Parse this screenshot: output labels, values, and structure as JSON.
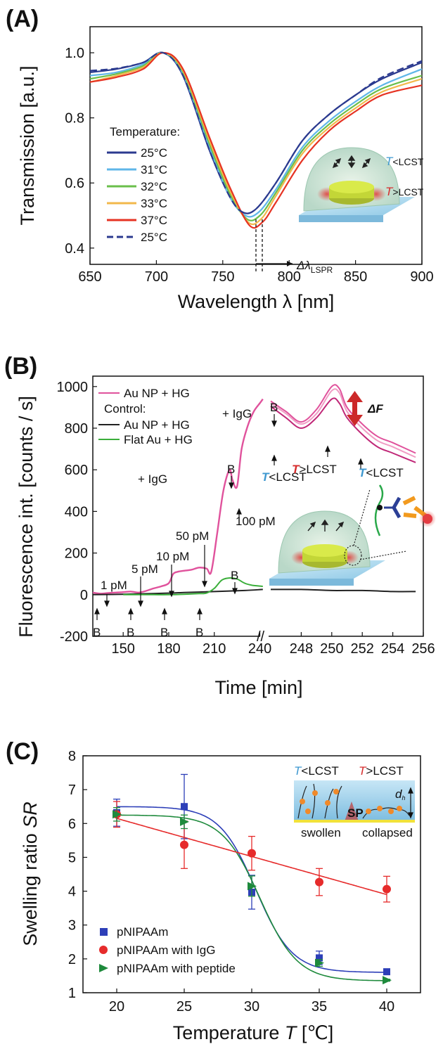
{
  "chart_data": [
    {
      "panel": "(A)",
      "type": "line",
      "xlabel": "Wavelength λ [nm]",
      "ylabel": "Transmission [a.u.]",
      "xlim": [
        650,
        900
      ],
      "ylim": [
        0.35,
        1.08
      ],
      "xticks": [
        650,
        700,
        750,
        800,
        850,
        900
      ],
      "yticks": [
        "0.4",
        "0.6",
        "0.8",
        "1.0"
      ],
      "legend_title": "Temperature:",
      "legend_position": "bottom-left",
      "series": [
        {
          "name": "25°C",
          "color": "#2b3a8f",
          "dash": false,
          "x": [
            650,
            670,
            690,
            705,
            720,
            740,
            755,
            765,
            775,
            790,
            810,
            830,
            850,
            870,
            900
          ],
          "y": [
            0.94,
            0.95,
            0.97,
            1.0,
            0.93,
            0.7,
            0.56,
            0.51,
            0.52,
            0.6,
            0.73,
            0.81,
            0.87,
            0.92,
            0.97
          ]
        },
        {
          "name": "31°C",
          "color": "#5fb6e8",
          "dash": false,
          "x": [
            650,
            670,
            690,
            705,
            720,
            740,
            755,
            767,
            777,
            790,
            810,
            830,
            850,
            870,
            900
          ],
          "y": [
            0.93,
            0.94,
            0.965,
            1.0,
            0.935,
            0.71,
            0.56,
            0.5,
            0.51,
            0.58,
            0.71,
            0.79,
            0.85,
            0.9,
            0.95
          ]
        },
        {
          "name": "32°C",
          "color": "#6abf4b",
          "dash": false,
          "x": [
            650,
            670,
            690,
            705,
            720,
            740,
            755,
            768,
            778,
            790,
            810,
            830,
            850,
            870,
            900
          ],
          "y": [
            0.92,
            0.935,
            0.96,
            1.0,
            0.94,
            0.72,
            0.57,
            0.49,
            0.5,
            0.57,
            0.7,
            0.78,
            0.84,
            0.89,
            0.93
          ]
        },
        {
          "name": "33°C",
          "color": "#f2b84b",
          "dash": false,
          "x": [
            650,
            670,
            690,
            705,
            720,
            740,
            755,
            769,
            779,
            790,
            810,
            830,
            850,
            870,
            900
          ],
          "y": [
            0.91,
            0.93,
            0.955,
            1.0,
            0.945,
            0.73,
            0.58,
            0.48,
            0.49,
            0.56,
            0.69,
            0.77,
            0.83,
            0.88,
            0.92
          ]
        },
        {
          "name": "37°C",
          "color": "#e63323",
          "dash": false,
          "x": [
            650,
            670,
            690,
            705,
            720,
            740,
            755,
            770,
            780,
            790,
            810,
            830,
            850,
            870,
            900
          ],
          "y": [
            0.91,
            0.925,
            0.95,
            1.0,
            0.95,
            0.74,
            0.59,
            0.47,
            0.48,
            0.54,
            0.67,
            0.76,
            0.82,
            0.87,
            0.9
          ]
        },
        {
          "name": "25°C",
          "color": "#2b3a8f",
          "dash": true,
          "x": [
            650,
            670,
            690,
            705,
            720,
            740,
            755,
            765,
            775,
            790,
            810,
            830,
            850,
            870,
            900
          ],
          "y": [
            0.945,
            0.952,
            0.97,
            1.0,
            0.93,
            0.7,
            0.56,
            0.51,
            0.52,
            0.6,
            0.73,
            0.81,
            0.87,
            0.925,
            0.975
          ]
        }
      ],
      "annotations": [
        "Δλ",
        "LSPR",
        "T",
        "<LCST",
        "T",
        ">LCST"
      ]
    },
    {
      "panel": "(B)",
      "type": "line",
      "xlabel": "Time [min]",
      "ylabel": "Fluorescence int. [counts / s]",
      "ylim": [
        -200,
        1050
      ],
      "yticks": [
        -200,
        0,
        200,
        400,
        600,
        800,
        1000
      ],
      "xticks_left": [
        150,
        180,
        210,
        240
      ],
      "xticks_right": [
        248,
        250,
        252,
        254,
        256
      ],
      "xlim_left": [
        130,
        243
      ],
      "xlim_right": [
        246,
        256
      ],
      "axis_break": "//",
      "legend_position": "top-left",
      "legend": {
        "s1": "Au NP + HG",
        "control": "Control:",
        "s2": "Au NP + HG",
        "s3": "Flat Au + HG"
      },
      "series": [
        {
          "name": "Au NP + HG",
          "color": "#e0529c",
          "x": [
            130,
            135,
            140,
            145,
            150,
            155,
            160,
            165,
            170,
            175,
            180,
            183,
            186,
            190,
            195,
            200,
            205,
            208,
            212,
            216,
            220,
            222,
            225,
            228,
            232,
            236,
            240,
            242
          ],
          "y": [
            10,
            5,
            8,
            10,
            12,
            15,
            10,
            18,
            30,
            40,
            55,
            100,
            110,
            115,
            120,
            130,
            125,
            110,
            300,
            500,
            600,
            550,
            520,
            700,
            810,
            880,
            920,
            940
          ]
        },
        {
          "name": "Au NP + HG",
          "color": "#222222",
          "x": [
            130,
            150,
            170,
            190,
            210,
            230,
            242
          ],
          "y": [
            0,
            2,
            5,
            10,
            15,
            20,
            25
          ]
        },
        {
          "name": "Flat Au + HG",
          "color": "#3aae3a",
          "x": [
            150,
            160,
            170,
            180,
            190,
            200,
            205,
            210,
            215,
            220,
            225,
            230,
            235,
            242
          ],
          "y": [
            0,
            0,
            0,
            0,
            2,
            5,
            8,
            30,
            70,
            80,
            75,
            55,
            45,
            40
          ]
        }
      ],
      "series_right": [
        {
          "name": "Au NP + HG",
          "color": "#e0529c",
          "x": [
            246,
            247,
            248,
            249,
            250,
            250.5,
            251,
            252,
            253,
            254,
            255.5
          ],
          "y": [
            930,
            880,
            830,
            890,
            1000,
            990,
            900,
            820,
            760,
            730,
            680
          ]
        },
        {
          "name": "Au NP + HG",
          "color": "#f09cc4",
          "x": [
            246,
            247,
            248,
            249,
            250,
            250.5,
            251,
            252,
            253,
            254,
            255.5
          ],
          "y": [
            920,
            870,
            820,
            870,
            980,
            970,
            880,
            800,
            740,
            710,
            660
          ]
        },
        {
          "name": "Au NP + HG",
          "color": "#c02878",
          "x": [
            246,
            247,
            248,
            249,
            250,
            250.5,
            251,
            252,
            253,
            254,
            255.5
          ],
          "y": [
            905,
            850,
            800,
            850,
            940,
            920,
            850,
            770,
            710,
            680,
            635
          ]
        },
        {
          "name": "Au NP + HG",
          "color": "#222222",
          "x": [
            246,
            248,
            250,
            252,
            254,
            255.5
          ],
          "y": [
            25,
            25,
            20,
            20,
            15,
            15
          ]
        }
      ],
      "annotations": {
        "conc": [
          "1 pM",
          "5 pM",
          "10 pM",
          "50 pM",
          "100 pM"
        ],
        "igg": [
          "+ IgG",
          "+ IgG"
        ],
        "b": [
          "B",
          "B",
          "B",
          "B",
          "B",
          "B",
          "B",
          "B",
          "B"
        ],
        "dF": "ΔF",
        "t1": "T",
        "t1b": "<LCST",
        "t2": "T",
        "t2b": ">LCST",
        "t3": "T",
        "t3b": "<LCST"
      }
    },
    {
      "panel": "(C)",
      "type": "scatter",
      "xlabel": "Temperature T [°C]",
      "ylabel": "Swelling ratio SR",
      "xlim": [
        17.5,
        42.5
      ],
      "ylim": [
        1,
        8
      ],
      "xticks": [
        20,
        25,
        30,
        35,
        40
      ],
      "yticks": [
        1,
        2,
        3,
        4,
        5,
        6,
        7,
        8
      ],
      "legend_position": "bottom-left",
      "series": [
        {
          "name": "pNIPAAm",
          "color": "#2d3fb8",
          "marker": "square",
          "x": [
            20,
            25,
            30,
            35,
            40
          ],
          "y": [
            6.32,
            6.5,
            3.97,
            2.03,
            1.62
          ],
          "err": [
            0.4,
            0.95,
            0.5,
            0.2,
            0.05
          ]
        },
        {
          "name": "pNIPAAm with IgG",
          "color": "#e62b2b",
          "marker": "circle",
          "x": [
            20,
            25,
            30,
            35,
            40
          ],
          "y": [
            6.27,
            5.37,
            5.12,
            4.27,
            4.06
          ],
          "err": [
            0.38,
            0.7,
            0.5,
            0.4,
            0.38
          ]
        },
        {
          "name": "pNIPAAm with peptide",
          "color": "#1e8a3c",
          "marker": "triangle-right",
          "x": [
            20,
            25,
            30,
            35,
            40
          ],
          "y": [
            6.27,
            6.05,
            4.15,
            1.88,
            1.37
          ],
          "err": [
            0.2,
            0.2,
            0.3,
            0.1,
            0.03
          ]
        }
      ],
      "annotations": {
        "t1": "T",
        "t1b": "<LCST",
        "t2": "T",
        "t2b": ">LCST",
        "dh": "d",
        "dhs": "h",
        "sp": "SP",
        "swollen": "swollen",
        "collapsed": "collapsed"
      }
    }
  ],
  "colors": {
    "blue_label": "#3e98d0",
    "red_label": "#d62c2c"
  }
}
